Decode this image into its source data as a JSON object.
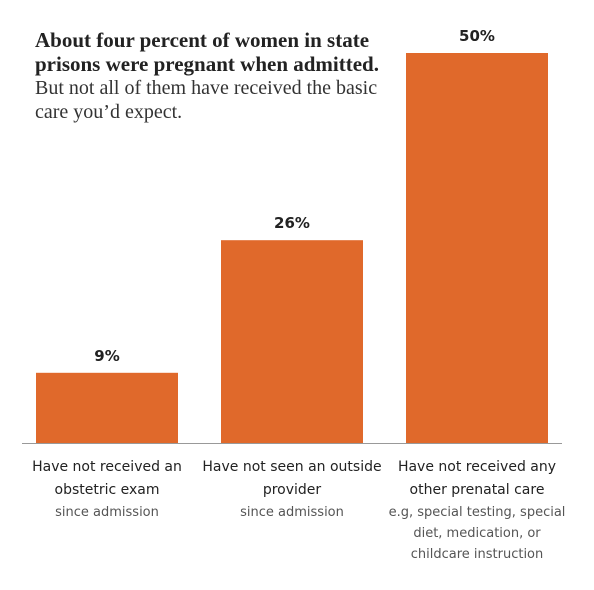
{
  "chart_data": {
    "type": "bar",
    "title": "About four percent of women in state prisons were pregnant when admitted.",
    "subtitle": "But not all of them have received the basic care you’d expect.",
    "categories": [
      "Have not received an obstetric exam",
      "Have not seen an outside provider",
      "Have not received any other prenatal care"
    ],
    "category_notes": [
      "since admission",
      "since admission",
      "e.g, special testing, special diet, medication, or childcare instruction"
    ],
    "values": [
      9,
      26,
      50
    ],
    "value_labels": [
      "9%",
      "26%",
      "50%"
    ],
    "color": "#e0692b"
  }
}
